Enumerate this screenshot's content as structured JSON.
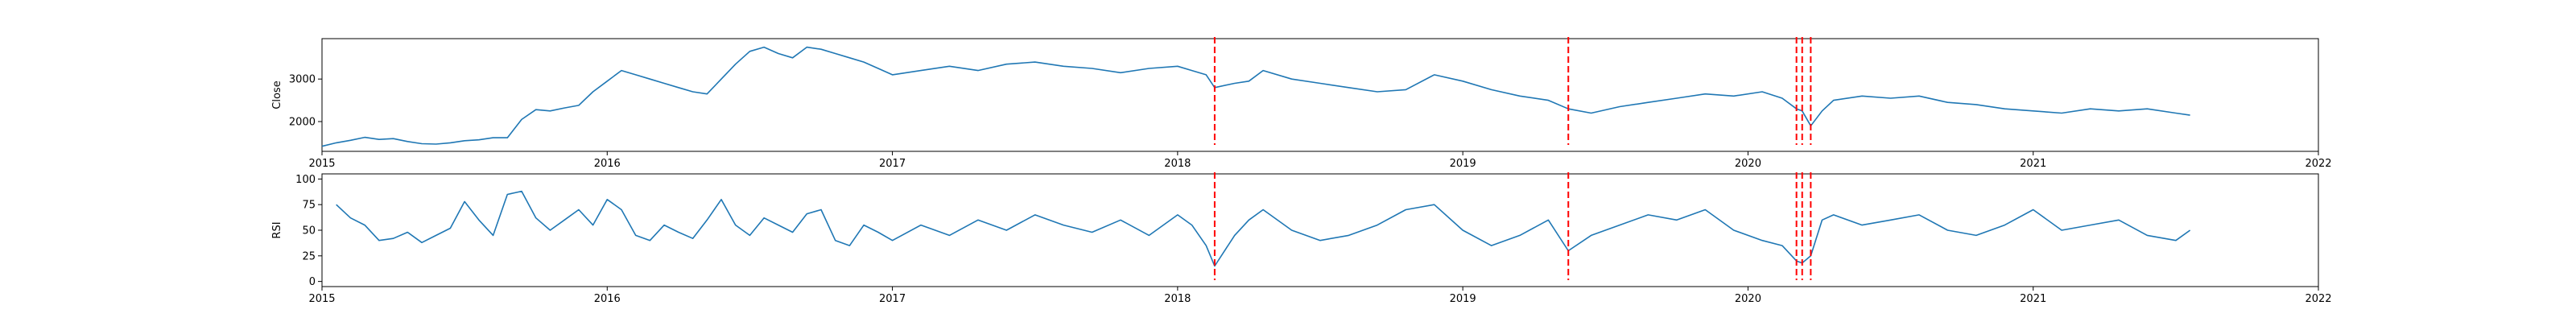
{
  "chart_data": [
    {
      "type": "line",
      "ylabel": "Close",
      "xlim": [
        2015.0,
        2022.0
      ],
      "ylim": [
        1300,
        3950
      ],
      "x_ticks": [
        2015,
        2016,
        2017,
        2018,
        2019,
        2020,
        2021,
        2022
      ],
      "x_tick_labels": [
        "2015",
        "2016",
        "2017",
        "2018",
        "2019",
        "2020",
        "2021",
        "2022"
      ],
      "y_ticks": [
        2000,
        3000
      ],
      "y_tick_labels": [
        "2000",
        "3000"
      ],
      "grid": false,
      "line_color": "#1f77b4",
      "marker_color": "#ff0000",
      "markers_x": [
        2018.13,
        2019.37,
        2020.17,
        2020.19,
        2020.22
      ],
      "series": [
        {
          "x": [
            2015.0,
            2015.05,
            2015.1,
            2015.15,
            2015.2,
            2015.25,
            2015.3,
            2015.35,
            2015.4,
            2015.45,
            2015.5,
            2015.55,
            2015.6,
            2015.65,
            2015.7,
            2015.75,
            2015.8,
            2015.85,
            2015.9,
            2015.95,
            2016.0,
            2016.05,
            2016.1,
            2016.15,
            2016.2,
            2016.25,
            2016.3,
            2016.35,
            2016.4,
            2016.45,
            2016.5,
            2016.55,
            2016.6,
            2016.65,
            2016.7,
            2016.75,
            2016.8,
            2016.85,
            2016.9,
            2016.95,
            2017.0,
            2017.1,
            2017.2,
            2017.3,
            2017.4,
            2017.5,
            2017.6,
            2017.7,
            2017.8,
            2017.9,
            2018.0,
            2018.05,
            2018.1,
            2018.13,
            2018.2,
            2018.25,
            2018.3,
            2018.4,
            2018.5,
            2018.6,
            2018.7,
            2018.8,
            2018.9,
            2019.0,
            2019.1,
            2019.2,
            2019.3,
            2019.37,
            2019.45,
            2019.55,
            2019.65,
            2019.75,
            2019.85,
            2019.95,
            2020.05,
            2020.12,
            2020.17,
            2020.19,
            2020.22,
            2020.26,
            2020.3,
            2020.4,
            2020.5,
            2020.6,
            2020.7,
            2020.8,
            2020.9,
            2021.0,
            2021.1,
            2021.2,
            2021.3,
            2021.4,
            2021.5,
            2021.55
          ],
          "values": [
            1420,
            1500,
            1560,
            1630,
            1580,
            1600,
            1530,
            1480,
            1470,
            1500,
            1550,
            1570,
            1620,
            1620,
            2050,
            2280,
            2250,
            2320,
            2380,
            2700,
            2950,
            3200,
            3100,
            3000,
            2900,
            2800,
            2700,
            2650,
            3000,
            3350,
            3650,
            3750,
            3600,
            3500,
            3750,
            3700,
            3600,
            3500,
            3400,
            3250,
            3100,
            3200,
            3300,
            3200,
            3350,
            3400,
            3300,
            3250,
            3150,
            3250,
            3300,
            3200,
            3100,
            2800,
            2900,
            2950,
            3200,
            3000,
            2900,
            2800,
            2700,
            2750,
            3100,
            2950,
            2750,
            2600,
            2500,
            2300,
            2200,
            2350,
            2450,
            2550,
            2650,
            2600,
            2700,
            2550,
            2300,
            2250,
            1900,
            2250,
            2500,
            2600,
            2550,
            2600,
            2450,
            2400,
            2300,
            2250,
            2200,
            2300,
            2250,
            2300,
            2200,
            2150
          ]
        }
      ]
    },
    {
      "type": "line",
      "ylabel": "RSI",
      "xlim": [
        2015.0,
        2022.0
      ],
      "ylim": [
        -5,
        105
      ],
      "x_ticks": [
        2015,
        2016,
        2017,
        2018,
        2019,
        2020,
        2021,
        2022
      ],
      "x_tick_labels": [
        "2015",
        "2016",
        "2017",
        "2018",
        "2019",
        "2020",
        "2021",
        "2022"
      ],
      "y_ticks": [
        0,
        25,
        50,
        75,
        100
      ],
      "y_tick_labels": [
        "0",
        "25",
        "50",
        "75",
        "100"
      ],
      "grid": false,
      "line_color": "#1f77b4",
      "marker_color": "#ff0000",
      "markers_x": [
        2018.13,
        2019.37,
        2020.17,
        2020.19,
        2020.22
      ],
      "series": [
        {
          "x": [
            2015.05,
            2015.1,
            2015.15,
            2015.2,
            2015.25,
            2015.3,
            2015.35,
            2015.4,
            2015.45,
            2015.5,
            2015.55,
            2015.6,
            2015.65,
            2015.7,
            2015.75,
            2015.8,
            2015.85,
            2015.9,
            2015.95,
            2016.0,
            2016.05,
            2016.1,
            2016.15,
            2016.2,
            2016.25,
            2016.3,
            2016.35,
            2016.4,
            2016.45,
            2016.5,
            2016.55,
            2016.6,
            2016.65,
            2016.7,
            2016.75,
            2016.8,
            2016.85,
            2016.9,
            2016.95,
            2017.0,
            2017.1,
            2017.2,
            2017.3,
            2017.4,
            2017.5,
            2017.6,
            2017.7,
            2017.8,
            2017.9,
            2018.0,
            2018.05,
            2018.1,
            2018.13,
            2018.2,
            2018.25,
            2018.3,
            2018.4,
            2018.5,
            2018.6,
            2018.7,
            2018.8,
            2018.9,
            2019.0,
            2019.1,
            2019.2,
            2019.3,
            2019.37,
            2019.45,
            2019.55,
            2019.65,
            2019.75,
            2019.85,
            2019.95,
            2020.05,
            2020.12,
            2020.17,
            2020.19,
            2020.22,
            2020.26,
            2020.3,
            2020.4,
            2020.5,
            2020.6,
            2020.7,
            2020.8,
            2020.9,
            2021.0,
            2021.1,
            2021.2,
            2021.3,
            2021.4,
            2021.5,
            2021.55
          ],
          "values": [
            75,
            62,
            55,
            40,
            42,
            48,
            38,
            45,
            52,
            78,
            60,
            45,
            85,
            88,
            62,
            50,
            60,
            70,
            55,
            80,
            70,
            45,
            40,
            55,
            48,
            42,
            60,
            80,
            55,
            45,
            62,
            55,
            48,
            66,
            70,
            40,
            35,
            55,
            48,
            40,
            55,
            45,
            60,
            50,
            65,
            55,
            48,
            60,
            45,
            65,
            55,
            35,
            15,
            45,
            60,
            70,
            50,
            40,
            45,
            55,
            70,
            75,
            50,
            35,
            45,
            60,
            30,
            45,
            55,
            65,
            60,
            70,
            50,
            40,
            35,
            20,
            18,
            25,
            60,
            65,
            55,
            60,
            65,
            50,
            45,
            55,
            70,
            50,
            55,
            60,
            45,
            40,
            50
          ]
        }
      ]
    }
  ]
}
